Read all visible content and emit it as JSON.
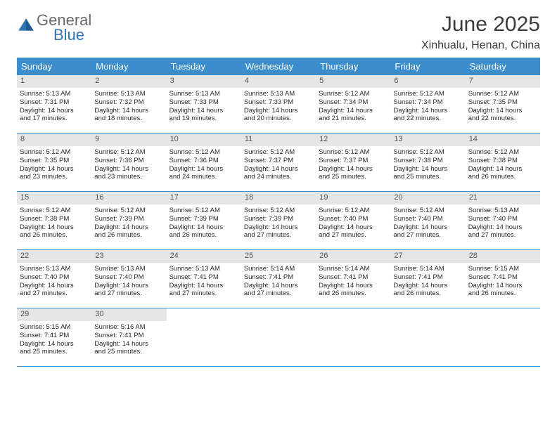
{
  "logo": {
    "general": "General",
    "blue": "Blue"
  },
  "title": "June 2025",
  "location": "Xinhualu, Henan, China",
  "colors": {
    "header_bg": "#3c8dcb",
    "header_text": "#ffffff",
    "daynum_bg": "#e6e6e6",
    "row_border": "#3c8dcb",
    "logo_blue": "#2f75b5",
    "logo_gray": "#6b6b6b",
    "text": "#2b2b2b"
  },
  "weekdays": [
    "Sunday",
    "Monday",
    "Tuesday",
    "Wednesday",
    "Thursday",
    "Friday",
    "Saturday"
  ],
  "weeks": [
    [
      {
        "n": "1",
        "sr": "Sunrise: 5:13 AM",
        "ss": "Sunset: 7:31 PM",
        "d1": "Daylight: 14 hours",
        "d2": "and 17 minutes."
      },
      {
        "n": "2",
        "sr": "Sunrise: 5:13 AM",
        "ss": "Sunset: 7:32 PM",
        "d1": "Daylight: 14 hours",
        "d2": "and 18 minutes."
      },
      {
        "n": "3",
        "sr": "Sunrise: 5:13 AM",
        "ss": "Sunset: 7:33 PM",
        "d1": "Daylight: 14 hours",
        "d2": "and 19 minutes."
      },
      {
        "n": "4",
        "sr": "Sunrise: 5:13 AM",
        "ss": "Sunset: 7:33 PM",
        "d1": "Daylight: 14 hours",
        "d2": "and 20 minutes."
      },
      {
        "n": "5",
        "sr": "Sunrise: 5:12 AM",
        "ss": "Sunset: 7:34 PM",
        "d1": "Daylight: 14 hours",
        "d2": "and 21 minutes."
      },
      {
        "n": "6",
        "sr": "Sunrise: 5:12 AM",
        "ss": "Sunset: 7:34 PM",
        "d1": "Daylight: 14 hours",
        "d2": "and 22 minutes."
      },
      {
        "n": "7",
        "sr": "Sunrise: 5:12 AM",
        "ss": "Sunset: 7:35 PM",
        "d1": "Daylight: 14 hours",
        "d2": "and 22 minutes."
      }
    ],
    [
      {
        "n": "8",
        "sr": "Sunrise: 5:12 AM",
        "ss": "Sunset: 7:35 PM",
        "d1": "Daylight: 14 hours",
        "d2": "and 23 minutes."
      },
      {
        "n": "9",
        "sr": "Sunrise: 5:12 AM",
        "ss": "Sunset: 7:36 PM",
        "d1": "Daylight: 14 hours",
        "d2": "and 23 minutes."
      },
      {
        "n": "10",
        "sr": "Sunrise: 5:12 AM",
        "ss": "Sunset: 7:36 PM",
        "d1": "Daylight: 14 hours",
        "d2": "and 24 minutes."
      },
      {
        "n": "11",
        "sr": "Sunrise: 5:12 AM",
        "ss": "Sunset: 7:37 PM",
        "d1": "Daylight: 14 hours",
        "d2": "and 24 minutes."
      },
      {
        "n": "12",
        "sr": "Sunrise: 5:12 AM",
        "ss": "Sunset: 7:37 PM",
        "d1": "Daylight: 14 hours",
        "d2": "and 25 minutes."
      },
      {
        "n": "13",
        "sr": "Sunrise: 5:12 AM",
        "ss": "Sunset: 7:38 PM",
        "d1": "Daylight: 14 hours",
        "d2": "and 25 minutes."
      },
      {
        "n": "14",
        "sr": "Sunrise: 5:12 AM",
        "ss": "Sunset: 7:38 PM",
        "d1": "Daylight: 14 hours",
        "d2": "and 26 minutes."
      }
    ],
    [
      {
        "n": "15",
        "sr": "Sunrise: 5:12 AM",
        "ss": "Sunset: 7:38 PM",
        "d1": "Daylight: 14 hours",
        "d2": "and 26 minutes."
      },
      {
        "n": "16",
        "sr": "Sunrise: 5:12 AM",
        "ss": "Sunset: 7:39 PM",
        "d1": "Daylight: 14 hours",
        "d2": "and 26 minutes."
      },
      {
        "n": "17",
        "sr": "Sunrise: 5:12 AM",
        "ss": "Sunset: 7:39 PM",
        "d1": "Daylight: 14 hours",
        "d2": "and 26 minutes."
      },
      {
        "n": "18",
        "sr": "Sunrise: 5:12 AM",
        "ss": "Sunset: 7:39 PM",
        "d1": "Daylight: 14 hours",
        "d2": "and 27 minutes."
      },
      {
        "n": "19",
        "sr": "Sunrise: 5:12 AM",
        "ss": "Sunset: 7:40 PM",
        "d1": "Daylight: 14 hours",
        "d2": "and 27 minutes."
      },
      {
        "n": "20",
        "sr": "Sunrise: 5:12 AM",
        "ss": "Sunset: 7:40 PM",
        "d1": "Daylight: 14 hours",
        "d2": "and 27 minutes."
      },
      {
        "n": "21",
        "sr": "Sunrise: 5:13 AM",
        "ss": "Sunset: 7:40 PM",
        "d1": "Daylight: 14 hours",
        "d2": "and 27 minutes."
      }
    ],
    [
      {
        "n": "22",
        "sr": "Sunrise: 5:13 AM",
        "ss": "Sunset: 7:40 PM",
        "d1": "Daylight: 14 hours",
        "d2": "and 27 minutes."
      },
      {
        "n": "23",
        "sr": "Sunrise: 5:13 AM",
        "ss": "Sunset: 7:40 PM",
        "d1": "Daylight: 14 hours",
        "d2": "and 27 minutes."
      },
      {
        "n": "24",
        "sr": "Sunrise: 5:13 AM",
        "ss": "Sunset: 7:41 PM",
        "d1": "Daylight: 14 hours",
        "d2": "and 27 minutes."
      },
      {
        "n": "25",
        "sr": "Sunrise: 5:14 AM",
        "ss": "Sunset: 7:41 PM",
        "d1": "Daylight: 14 hours",
        "d2": "and 27 minutes."
      },
      {
        "n": "26",
        "sr": "Sunrise: 5:14 AM",
        "ss": "Sunset: 7:41 PM",
        "d1": "Daylight: 14 hours",
        "d2": "and 26 minutes."
      },
      {
        "n": "27",
        "sr": "Sunrise: 5:14 AM",
        "ss": "Sunset: 7:41 PM",
        "d1": "Daylight: 14 hours",
        "d2": "and 26 minutes."
      },
      {
        "n": "28",
        "sr": "Sunrise: 5:15 AM",
        "ss": "Sunset: 7:41 PM",
        "d1": "Daylight: 14 hours",
        "d2": "and 26 minutes."
      }
    ],
    [
      {
        "n": "29",
        "sr": "Sunrise: 5:15 AM",
        "ss": "Sunset: 7:41 PM",
        "d1": "Daylight: 14 hours",
        "d2": "and 25 minutes."
      },
      {
        "n": "30",
        "sr": "Sunrise: 5:16 AM",
        "ss": "Sunset: 7:41 PM",
        "d1": "Daylight: 14 hours",
        "d2": "and 25 minutes."
      },
      {
        "empty": true
      },
      {
        "empty": true
      },
      {
        "empty": true
      },
      {
        "empty": true
      },
      {
        "empty": true
      }
    ]
  ]
}
